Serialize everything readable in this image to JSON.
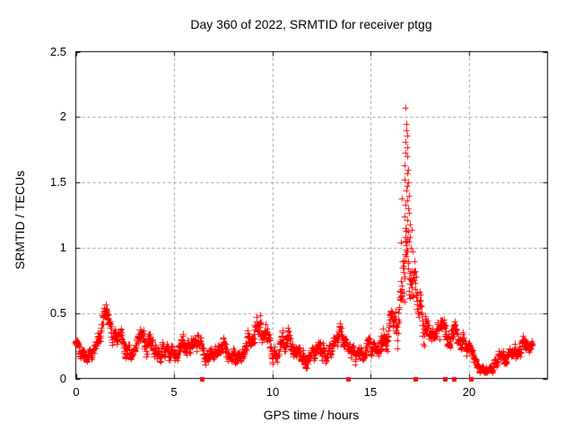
{
  "chart_data": {
    "type": "scatter",
    "title": "Day 360 of 2022, SRMTID for receiver ptgg",
    "xlabel": "GPS time / hours",
    "ylabel": "SRMTID / TECUs",
    "xlim": [
      0,
      24
    ],
    "ylim": [
      0,
      2.5
    ],
    "x_ticks": [
      0,
      5,
      10,
      15,
      20
    ],
    "x_tick_labels": [
      "0",
      "5",
      "10",
      "15",
      "20"
    ],
    "y_ticks": [
      0,
      0.5,
      1,
      1.5,
      2,
      2.5
    ],
    "y_tick_labels": [
      "0",
      "0.5",
      "1",
      "1.5",
      "2",
      "2.5"
    ],
    "grid": {
      "show": true,
      "style": "dashed",
      "color": "#999999"
    },
    "frame_color": "#000000",
    "background": "#ffffff",
    "peak_value_tecus": 2.07,
    "peak_time_hours": 16.8,
    "series": [
      {
        "name": "srmtid",
        "marker": "plus",
        "color": "#ff0000",
        "marker_px": 7,
        "sample_step_hours": 0.014,
        "data_end_hour": 23.25,
        "envelope_hour_mean_halfspread": [
          [
            0.0,
            0.28,
            0.09
          ],
          [
            0.4,
            0.26,
            0.08
          ],
          [
            0.9,
            0.22,
            0.07
          ],
          [
            1.2,
            0.28,
            0.1
          ],
          [
            1.5,
            0.38,
            0.13
          ],
          [
            1.8,
            0.32,
            0.12
          ],
          [
            2.2,
            0.3,
            0.11
          ],
          [
            2.8,
            0.25,
            0.08
          ],
          [
            3.1,
            0.3,
            0.11
          ],
          [
            3.35,
            0.38,
            0.12
          ],
          [
            3.6,
            0.3,
            0.1
          ],
          [
            3.9,
            0.28,
            0.1
          ],
          [
            4.3,
            0.22,
            0.08
          ],
          [
            4.7,
            0.18,
            0.07
          ],
          [
            5.1,
            0.2,
            0.08
          ],
          [
            5.5,
            0.26,
            0.1
          ],
          [
            5.8,
            0.3,
            0.11
          ],
          [
            6.2,
            0.27,
            0.1
          ],
          [
            6.6,
            0.2,
            0.08
          ],
          [
            7.0,
            0.21,
            0.08
          ],
          [
            7.5,
            0.25,
            0.09
          ],
          [
            7.9,
            0.22,
            0.08
          ],
          [
            8.3,
            0.2,
            0.08
          ],
          [
            8.7,
            0.24,
            0.09
          ],
          [
            9.0,
            0.3,
            0.11
          ],
          [
            9.3,
            0.4,
            0.14
          ],
          [
            9.6,
            0.34,
            0.12
          ],
          [
            9.9,
            0.3,
            0.11
          ],
          [
            10.3,
            0.24,
            0.09
          ],
          [
            10.8,
            0.28,
            0.1
          ],
          [
            11.2,
            0.24,
            0.09
          ],
          [
            11.5,
            0.2,
            0.08
          ],
          [
            11.9,
            0.27,
            0.09
          ],
          [
            12.3,
            0.22,
            0.08
          ],
          [
            12.7,
            0.19,
            0.08
          ],
          [
            13.1,
            0.25,
            0.09
          ],
          [
            13.5,
            0.3,
            0.1
          ],
          [
            13.9,
            0.22,
            0.08
          ],
          [
            14.3,
            0.2,
            0.08
          ],
          [
            14.7,
            0.17,
            0.07
          ],
          [
            15.1,
            0.22,
            0.09
          ],
          [
            15.5,
            0.3,
            0.11
          ],
          [
            15.9,
            0.38,
            0.14
          ],
          [
            16.2,
            0.5,
            0.18
          ],
          [
            16.5,
            0.7,
            0.28
          ],
          [
            16.8,
            0.85,
            0.38
          ],
          [
            17.0,
            0.8,
            0.36
          ],
          [
            17.2,
            0.62,
            0.28
          ],
          [
            17.5,
            0.5,
            0.2
          ],
          [
            17.8,
            0.42,
            0.15
          ],
          [
            18.1,
            0.36,
            0.12
          ],
          [
            18.5,
            0.38,
            0.13
          ],
          [
            18.8,
            0.35,
            0.12
          ],
          [
            19.2,
            0.32,
            0.11
          ],
          [
            19.5,
            0.28,
            0.1
          ],
          [
            19.9,
            0.2,
            0.08
          ],
          [
            20.3,
            0.16,
            0.07
          ],
          [
            20.7,
            0.09,
            0.04
          ],
          [
            21.1,
            0.07,
            0.04
          ],
          [
            21.5,
            0.13,
            0.06
          ],
          [
            21.9,
            0.17,
            0.07
          ],
          [
            22.3,
            0.18,
            0.07
          ],
          [
            22.7,
            0.2,
            0.08
          ],
          [
            23.0,
            0.21,
            0.09
          ],
          [
            23.25,
            0.22,
            0.09
          ]
        ],
        "outlier_points": [
          [
            16.78,
            2.07
          ],
          [
            16.8,
            1.95
          ],
          [
            16.82,
            1.9
          ],
          [
            16.84,
            1.86
          ],
          [
            16.79,
            1.81
          ],
          [
            16.86,
            1.77
          ],
          [
            16.76,
            1.73
          ],
          [
            16.88,
            1.7
          ],
          [
            16.7,
            1.63
          ],
          [
            16.9,
            1.6
          ],
          [
            16.85,
            1.57
          ],
          [
            16.74,
            1.52
          ],
          [
            16.92,
            1.5
          ],
          [
            16.88,
            1.47
          ],
          [
            16.8,
            1.44
          ],
          [
            16.95,
            1.4
          ],
          [
            16.6,
            1.38
          ],
          [
            16.85,
            1.36
          ],
          [
            16.75,
            1.33
          ],
          [
            16.9,
            1.3
          ],
          [
            16.96,
            1.27
          ],
          [
            16.7,
            1.24
          ],
          [
            16.85,
            1.21
          ],
          [
            16.98,
            1.18
          ],
          [
            16.78,
            1.15
          ],
          [
            17.1,
            1.14
          ],
          [
            16.9,
            1.12
          ],
          [
            17.0,
            1.08
          ],
          [
            16.95,
            1.05
          ],
          [
            16.55,
            1.04
          ],
          [
            16.82,
            1.02
          ],
          [
            17.05,
            1.0
          ],
          [
            17.15,
            0.97
          ]
        ]
      },
      {
        "name": "zero-flags",
        "marker": "filled-square",
        "color": "#ff0000",
        "marker_px": 5,
        "points": [
          [
            6.42,
            0
          ],
          [
            13.84,
            0
          ],
          [
            17.27,
            0
          ],
          [
            18.77,
            0
          ],
          [
            19.24,
            0
          ],
          [
            20.08,
            0
          ]
        ]
      }
    ]
  }
}
